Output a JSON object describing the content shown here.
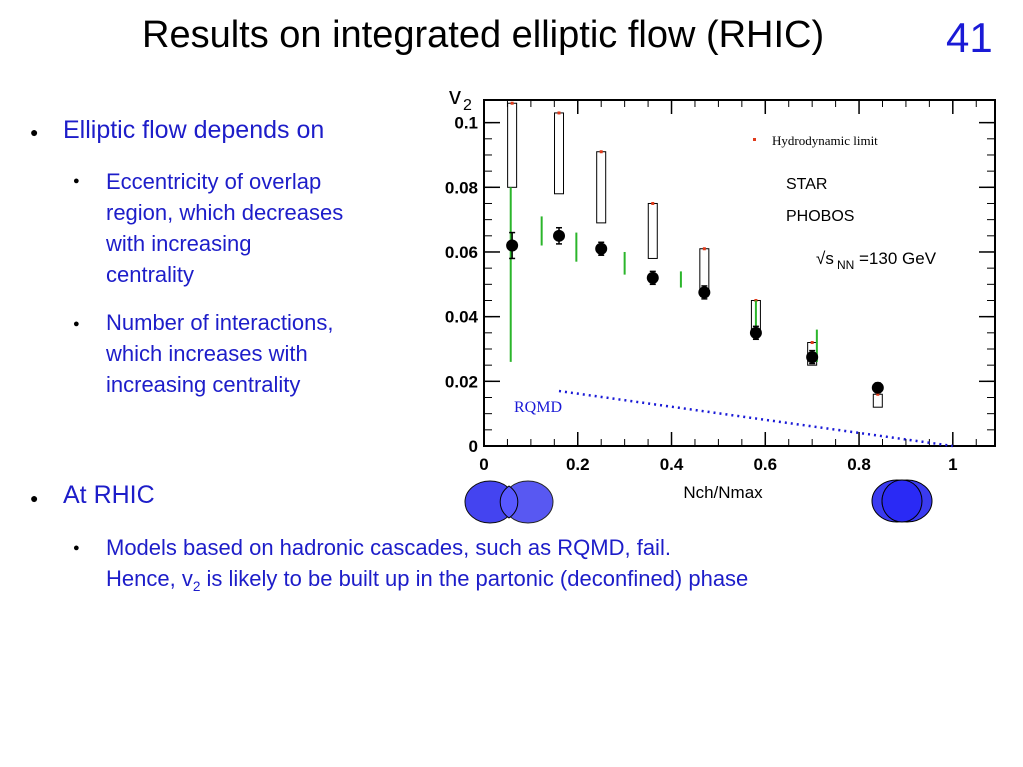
{
  "slide": {
    "title": "Results on integrated elliptic flow (RHIC)",
    "number": "41"
  },
  "bullets": {
    "b1": "Elliptic flow depends on",
    "b1_sub1": [
      "Eccentricity of overlap",
      "region, which decreases",
      "with increasing",
      "centrality"
    ],
    "b1_sub2": [
      "Number of interactions,",
      "which increases with",
      "increasing centrality"
    ],
    "b2": "At RHIC",
    "b2_sub1_line1": "Models based on hadronic cascades, such as RQMD, fail.",
    "b2_sub1_line2_pre": "Hence, v",
    "b2_sub1_line2_sub": "2",
    "b2_sub1_line2_post": " is likely to be built up in the partonic (deconfined) phase"
  },
  "chart_data": {
    "type": "scatter",
    "xlabel": "Nch/Nmax",
    "ylabel_main": "v",
    "ylabel_sub": "2",
    "xlim": [
      0,
      1.09
    ],
    "ylim": [
      0,
      0.107
    ],
    "xticks": [
      0,
      0.2,
      0.4,
      0.6,
      0.8,
      1
    ],
    "xtick_labels": [
      "0",
      "0.2",
      "0.4",
      "0.6",
      "0.8",
      "1"
    ],
    "yticks": [
      0,
      0.02,
      0.04,
      0.06,
      0.08,
      0.1
    ],
    "ytick_labels": [
      "0",
      "0.02",
      "0.04",
      "0.06",
      "0.08",
      "0.1"
    ],
    "legend": [
      "Hydrodynamic limit",
      "STAR",
      "PHOBOS"
    ],
    "legend_placement": "top-right",
    "energy_label_pre": "√s",
    "energy_label_sub": "NN",
    "energy_label_post": "=130 GeV",
    "rqmd_label": "RQMD",
    "colors": {
      "star": "#000000",
      "phobos": "#2bb52b",
      "hydro": "#e03a1a",
      "rqmd": "#1a1ad6",
      "nucleus": "#3b3bf0"
    },
    "star_points": [
      {
        "x": 0.06,
        "y": 0.062,
        "err": 0.004
      },
      {
        "x": 0.16,
        "y": 0.065,
        "err": 0.0025
      },
      {
        "x": 0.25,
        "y": 0.061,
        "err": 0.002
      },
      {
        "x": 0.36,
        "y": 0.052,
        "err": 0.002
      },
      {
        "x": 0.47,
        "y": 0.0475,
        "err": 0.002
      },
      {
        "x": 0.58,
        "y": 0.035,
        "err": 0.002
      },
      {
        "x": 0.7,
        "y": 0.0275,
        "err": 0.002
      },
      {
        "x": 0.84,
        "y": 0.018,
        "err": 0.0015
      }
    ],
    "phobos_bars": [
      {
        "x": 0.057,
        "lo": 0.026,
        "hi": 0.08
      },
      {
        "x": 0.123,
        "lo": 0.062,
        "hi": 0.071
      },
      {
        "x": 0.197,
        "lo": 0.057,
        "hi": 0.066
      },
      {
        "x": 0.3,
        "lo": 0.053,
        "hi": 0.06
      },
      {
        "x": 0.42,
        "lo": 0.049,
        "hi": 0.054
      },
      {
        "x": 0.58,
        "lo": 0.033,
        "hi": 0.045
      },
      {
        "x": 0.71,
        "lo": 0.026,
        "hi": 0.036
      }
    ],
    "hydro_boxes": [
      {
        "x": 0.06,
        "lo": 0.08,
        "hi": 0.106
      },
      {
        "x": 0.16,
        "lo": 0.078,
        "hi": 0.103
      },
      {
        "x": 0.25,
        "lo": 0.069,
        "hi": 0.091
      },
      {
        "x": 0.36,
        "lo": 0.058,
        "hi": 0.075
      },
      {
        "x": 0.47,
        "lo": 0.048,
        "hi": 0.061
      },
      {
        "x": 0.58,
        "lo": 0.035,
        "hi": 0.045
      },
      {
        "x": 0.7,
        "lo": 0.025,
        "hi": 0.032
      },
      {
        "x": 0.84,
        "lo": 0.012,
        "hi": 0.016
      }
    ],
    "rqmd_line": [
      {
        "x": 0.16,
        "y": 0.017
      },
      {
        "x": 1.0,
        "y": 0.0
      }
    ]
  }
}
